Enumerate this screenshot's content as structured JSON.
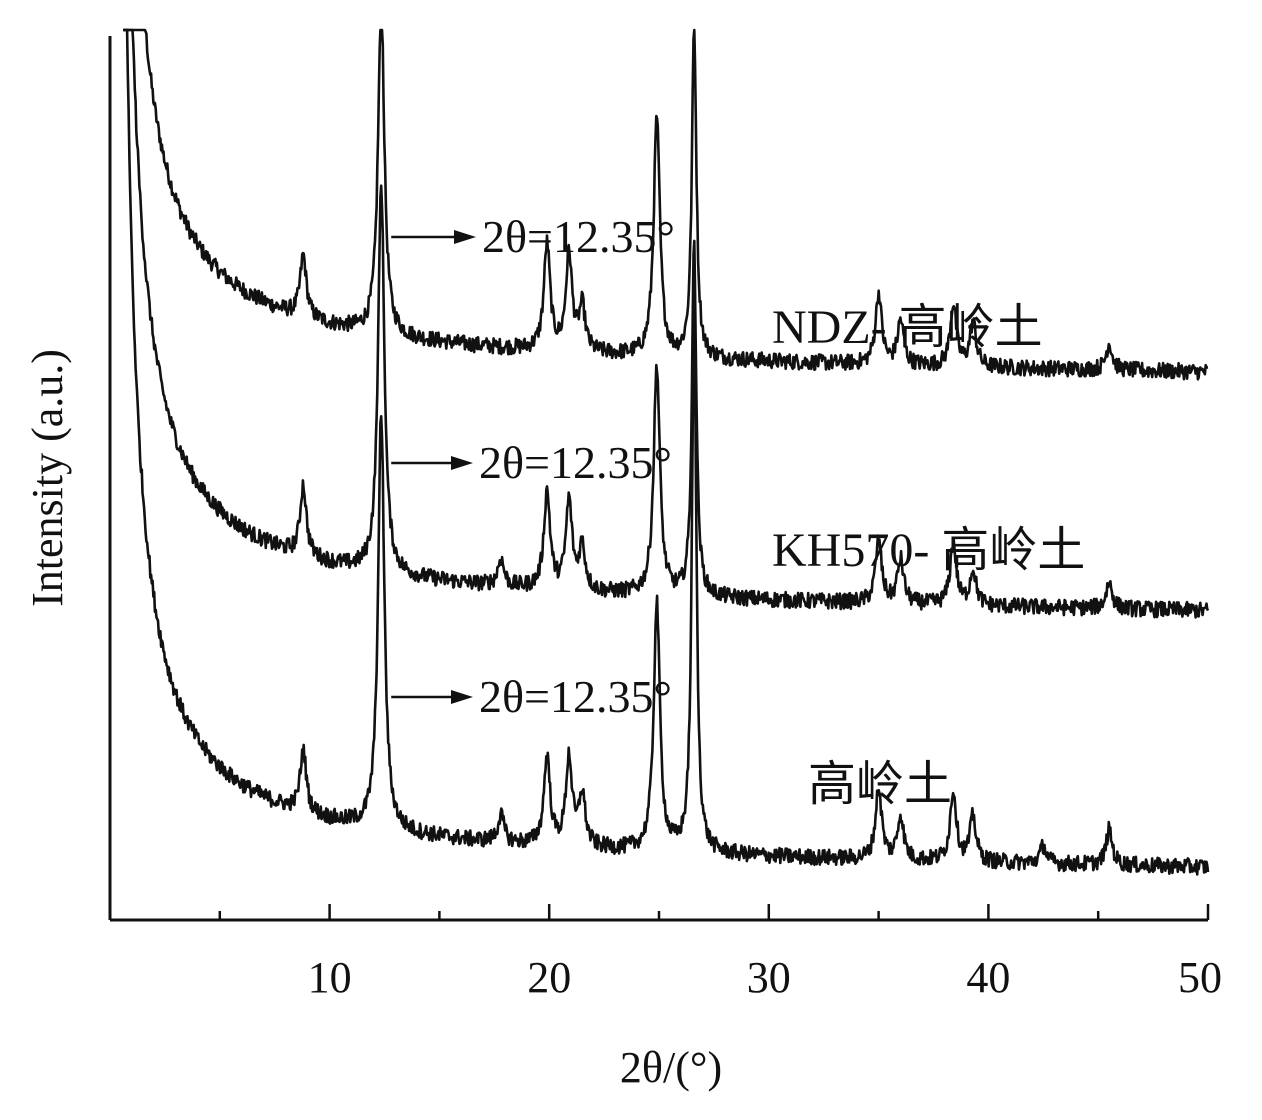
{
  "chart_data": {
    "type": "line",
    "title": "",
    "xlabel": "2θ/(°)",
    "ylabel": "Intensity (a.u.)",
    "xlim": [
      0,
      50
    ],
    "xticks": [
      10,
      20,
      30,
      40,
      50
    ],
    "y_ticks_shown": false,
    "grid": false,
    "legend": "none (series labelled beside each trace)",
    "line_color": "#111111",
    "series": [
      {
        "name": "NDZ- 高岭土",
        "baseline": 0.62,
        "peaks": [
          {
            "x": 8.8,
            "height": 0.07
          },
          {
            "x": 12.35,
            "height": 0.38
          },
          {
            "x": 19.9,
            "height": 0.12
          },
          {
            "x": 20.9,
            "height": 0.11
          },
          {
            "x": 21.5,
            "height": 0.05
          },
          {
            "x": 24.9,
            "height": 0.27
          },
          {
            "x": 26.6,
            "height": 0.38
          },
          {
            "x": 35.0,
            "height": 0.08
          },
          {
            "x": 36.0,
            "height": 0.05
          },
          {
            "x": 38.4,
            "height": 0.07
          },
          {
            "x": 39.3,
            "height": 0.05
          },
          {
            "x": 45.5,
            "height": 0.03
          }
        ]
      },
      {
        "name": "KH570- 高岭土",
        "baseline": 0.35,
        "peaks": [
          {
            "x": 8.8,
            "height": 0.08
          },
          {
            "x": 12.35,
            "height": 0.44
          },
          {
            "x": 17.8,
            "height": 0.03
          },
          {
            "x": 19.9,
            "height": 0.11
          },
          {
            "x": 20.9,
            "height": 0.1
          },
          {
            "x": 21.5,
            "height": 0.05
          },
          {
            "x": 24.9,
            "height": 0.26
          },
          {
            "x": 26.6,
            "height": 0.4
          },
          {
            "x": 35.0,
            "height": 0.07
          },
          {
            "x": 36.0,
            "height": 0.05
          },
          {
            "x": 38.4,
            "height": 0.07
          },
          {
            "x": 39.3,
            "height": 0.04
          },
          {
            "x": 45.5,
            "height": 0.03
          }
        ]
      },
      {
        "name": "高岭土",
        "baseline": 0.06,
        "peaks": [
          {
            "x": 8.8,
            "height": 0.07
          },
          {
            "x": 12.35,
            "height": 0.47
          },
          {
            "x": 17.8,
            "height": 0.03
          },
          {
            "x": 19.9,
            "height": 0.1
          },
          {
            "x": 20.9,
            "height": 0.1
          },
          {
            "x": 21.5,
            "height": 0.06
          },
          {
            "x": 24.9,
            "height": 0.28
          },
          {
            "x": 26.6,
            "height": 0.62
          },
          {
            "x": 35.0,
            "height": 0.08
          },
          {
            "x": 36.0,
            "height": 0.05
          },
          {
            "x": 38.4,
            "height": 0.08
          },
          {
            "x": 39.3,
            "height": 0.05
          },
          {
            "x": 42.5,
            "height": 0.02
          },
          {
            "x": 45.5,
            "height": 0.04
          }
        ]
      }
    ],
    "annotations": [
      {
        "text": "2θ=12.35°",
        "series": "NDZ- 高岭土",
        "x": 12.35
      },
      {
        "text": "2θ=12.35°",
        "series": "KH570- 高岭土",
        "x": 12.35
      },
      {
        "text": "2θ=12.35°",
        "series": "高岭土",
        "x": 12.35
      }
    ]
  }
}
